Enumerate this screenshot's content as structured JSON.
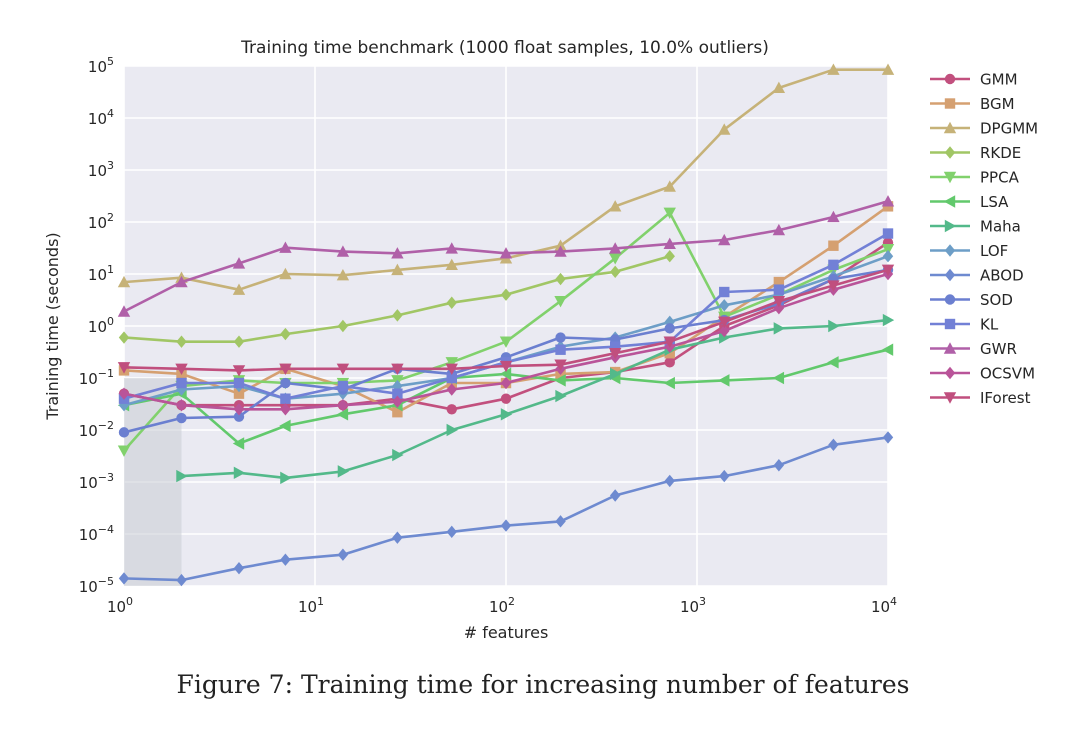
{
  "caption": "Figure 7: Training time for increasing number of features",
  "chart_data": {
    "type": "line",
    "title": "Training time benchmark (1000 float samples, 10.0% outliers)",
    "xlabel": "# features",
    "ylabel": "Training time (seconds)",
    "xscale": "log",
    "yscale": "log",
    "xlim": [
      1,
      10000
    ],
    "ylim": [
      1e-05,
      100000
    ],
    "xticks": [
      {
        "v": 1,
        "e": "0"
      },
      {
        "v": 10,
        "e": "1"
      },
      {
        "v": 100,
        "e": "2"
      },
      {
        "v": 1000,
        "e": "3"
      },
      {
        "v": 10000,
        "e": "4"
      }
    ],
    "yticks": [
      {
        "v": 1e-05,
        "e": "−5"
      },
      {
        "v": 0.0001,
        "e": "−4"
      },
      {
        "v": 0.001,
        "e": "−3"
      },
      {
        "v": 0.01,
        "e": "−2"
      },
      {
        "v": 0.1,
        "e": "−1"
      },
      {
        "v": 1,
        "e": "0"
      },
      {
        "v": 10,
        "e": "1"
      },
      {
        "v": 100,
        "e": "2"
      },
      {
        "v": 1000,
        "e": "3"
      },
      {
        "v": 10000,
        "e": "4"
      },
      {
        "v": 100000,
        "e": "5"
      }
    ],
    "grid": true,
    "legend_position": "right",
    "background": "#eaeaf2",
    "series": [
      {
        "name": "GMM",
        "color": "#c2507e",
        "marker": "circle",
        "x": [
          1,
          2,
          4,
          7,
          14,
          27,
          52,
          100,
          193,
          373,
          720,
          1389,
          2683,
          5179,
          10000
        ],
        "y": [
          0.05,
          0.03,
          0.03,
          0.03,
          0.03,
          0.04,
          0.025,
          0.04,
          0.1,
          0.13,
          0.2,
          1.0,
          2.5,
          8,
          40
        ]
      },
      {
        "name": "BGM",
        "color": "#d5a071",
        "marker": "square",
        "x": [
          1,
          2,
          4,
          7,
          14,
          27,
          52,
          100,
          193,
          373,
          720,
          1389,
          2683,
          5179,
          10000
        ],
        "y": [
          0.14,
          0.12,
          0.05,
          0.15,
          0.07,
          0.022,
          0.08,
          0.08,
          0.12,
          0.13,
          0.3,
          1.5,
          7,
          35,
          200
        ]
      },
      {
        "name": "DPGMM",
        "color": "#c6b278",
        "marker": "triangle-up",
        "x": [
          1,
          2,
          4,
          7,
          14,
          27,
          52,
          100,
          193,
          373,
          720,
          1389,
          2683,
          5179,
          10000
        ],
        "y": [
          7,
          8.5,
          5,
          10,
          9.5,
          12,
          15,
          20,
          35,
          200,
          480,
          6000,
          38000,
          85000,
          85000
        ]
      },
      {
        "name": "RKDE",
        "color": "#a1c665",
        "marker": "diamond",
        "x": [
          1,
          2,
          4,
          7,
          14,
          27,
          52,
          100,
          193,
          373,
          720
        ],
        "y": [
          0.6,
          0.5,
          0.5,
          0.7,
          1.0,
          1.6,
          2.8,
          4,
          8,
          11,
          22
        ]
      },
      {
        "name": "PPCA",
        "color": "#81d16c",
        "marker": "triangle-down",
        "x": [
          1,
          2,
          4,
          7,
          14,
          27,
          52,
          100,
          193,
          373,
          720,
          1389,
          2683,
          5179,
          10000
        ],
        "y": [
          0.004,
          0.07,
          0.09,
          0.08,
          0.08,
          0.09,
          0.2,
          0.5,
          3,
          20,
          150,
          1.5,
          4,
          12,
          30
        ]
      },
      {
        "name": "LSA",
        "color": "#62c96c",
        "marker": "triangle-left",
        "x": [
          1,
          2,
          4,
          7,
          14,
          27,
          52,
          100,
          193,
          373,
          720,
          1389,
          2683,
          5179,
          10000
        ],
        "y": [
          0.03,
          0.05,
          0.0055,
          0.012,
          0.02,
          0.03,
          0.1,
          0.12,
          0.09,
          0.1,
          0.08,
          0.09,
          0.1,
          0.2,
          0.35
        ]
      },
      {
        "name": "Maha",
        "color": "#53b98a",
        "marker": "triangle-right",
        "x": [
          2,
          4,
          7,
          14,
          27,
          52,
          100,
          193,
          373,
          720,
          1389,
          2683,
          5179,
          10000
        ],
        "y": [
          0.0013,
          0.0015,
          0.0012,
          0.0016,
          0.0033,
          0.01,
          0.02,
          0.045,
          0.12,
          0.35,
          0.6,
          0.9,
          1.0,
          1.3
        ]
      },
      {
        "name": "LOF",
        "color": "#6d9ec7",
        "marker": "diamond",
        "x": [
          1,
          2,
          4,
          7,
          14,
          27,
          52,
          100,
          193,
          373,
          720,
          1389,
          2683,
          5179,
          10000
        ],
        "y": [
          0.03,
          0.06,
          0.07,
          0.04,
          0.05,
          0.07,
          0.1,
          0.2,
          0.4,
          0.6,
          1.2,
          2.5,
          4,
          9,
          22
        ]
      },
      {
        "name": "ABOD",
        "color": "#6e8ad0",
        "marker": "diamond",
        "x": [
          1,
          2,
          4,
          7,
          14,
          27,
          52,
          100,
          193,
          373,
          720,
          1389,
          2683,
          5179,
          10000
        ],
        "y": [
          1.4e-05,
          1.3e-05,
          2.2e-05,
          3.2e-05,
          4e-05,
          8.5e-05,
          0.00011,
          0.000145,
          0.000175,
          0.00055,
          0.00105,
          0.0013,
          0.0021,
          0.0052,
          0.0072
        ]
      },
      {
        "name": "SOD",
        "color": "#6b7fd0",
        "marker": "circle",
        "x": [
          1,
          2,
          4,
          7,
          14,
          27,
          52,
          100,
          193,
          373,
          720,
          1389,
          2683,
          5179,
          10000
        ],
        "y": [
          0.009,
          0.017,
          0.018,
          0.08,
          0.06,
          0.15,
          0.12,
          0.25,
          0.6,
          0.55,
          0.9,
          1.3,
          2.7,
          8,
          12
        ]
      },
      {
        "name": "KL",
        "color": "#7280d6",
        "marker": "square",
        "x": [
          1,
          2,
          4,
          7,
          14,
          27,
          52,
          100,
          193,
          373,
          720,
          1389,
          2683,
          5179,
          10000
        ],
        "y": [
          0.04,
          0.08,
          0.08,
          0.04,
          0.07,
          0.05,
          0.1,
          0.2,
          0.35,
          0.4,
          0.5,
          4.5,
          5,
          15,
          60
        ]
      },
      {
        "name": "GWR",
        "color": "#b060a8",
        "marker": "triangle-up",
        "x": [
          1,
          2,
          4,
          7,
          14,
          27,
          52,
          100,
          193,
          373,
          720,
          1389,
          2683,
          5179,
          10000
        ],
        "y": [
          1.9,
          7,
          16,
          32,
          27,
          25,
          31,
          25,
          27,
          31,
          38,
          45,
          70,
          125,
          250
        ]
      },
      {
        "name": "OCSVM",
        "color": "#b95499",
        "marker": "diamond",
        "x": [
          1,
          2,
          4,
          7,
          14,
          27,
          52,
          100,
          193,
          373,
          720,
          1389,
          2683,
          5179,
          10000
        ],
        "y": [
          0.05,
          0.03,
          0.025,
          0.025,
          0.03,
          0.035,
          0.06,
          0.08,
          0.15,
          0.25,
          0.4,
          0.8,
          2.2,
          5,
          10
        ]
      },
      {
        "name": "IForest",
        "color": "#c04f7e",
        "marker": "triangle-down",
        "x": [
          1,
          2,
          4,
          7,
          14,
          27,
          52,
          100,
          193,
          373,
          720,
          1389,
          2683,
          5179,
          10000
        ],
        "y": [
          0.16,
          0.15,
          0.14,
          0.15,
          0.15,
          0.15,
          0.15,
          0.17,
          0.18,
          0.3,
          0.5,
          1.2,
          3,
          6,
          12
        ]
      }
    ]
  }
}
